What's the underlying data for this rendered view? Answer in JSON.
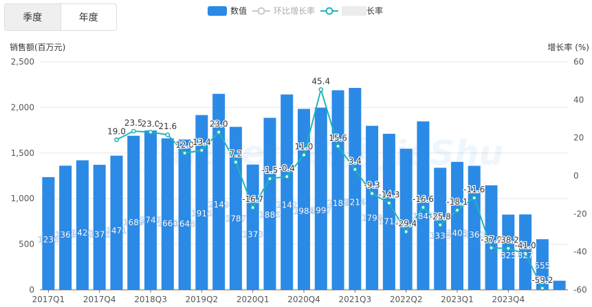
{
  "tabs": [
    {
      "label": "季度",
      "active": true
    },
    {
      "label": "年度",
      "active": false
    }
  ],
  "legend": [
    {
      "label": "数值",
      "type": "bar",
      "color": "#2b8ae6"
    },
    {
      "label": "环比增长率",
      "type": "line",
      "color": "#c8c8c8"
    },
    {
      "label": "长率",
      "type": "line",
      "color": "#1eb5b8"
    }
  ],
  "left_axis_title": "销售额(百万元)",
  "right_axis_title": "增长率  (%)",
  "watermark": "Jiuzhen 数据 JieShu",
  "colors": {
    "bar": "#2b8ae6",
    "line": "#1eb5b8",
    "grid": "#e6e6e6",
    "text": "#333333"
  },
  "chart_data": {
    "type": "bar",
    "categories": [
      "2017Q1",
      "2017Q2",
      "2017Q3",
      "2017Q4",
      "2018Q1",
      "2018Q2",
      "2018Q3",
      "2018Q4",
      "2019Q1",
      "2019Q2",
      "2019Q3",
      "2019Q4",
      "2020Q1",
      "2020Q2",
      "2020Q3",
      "2020Q4",
      "2021Q1",
      "2021Q2",
      "2021Q3",
      "2021Q4",
      "2022Q1",
      "2022Q2",
      "2022Q3",
      "2022Q4",
      "2023Q1",
      "2023Q2",
      "2023Q3",
      "2023Q4",
      "2024Q1",
      "2024Q2",
      "2024Q3"
    ],
    "x_tick_labels": [
      "2017Q1",
      "2017Q4",
      "2018Q3",
      "2019Q2",
      "2020Q1",
      "2020Q4",
      "2021Q3",
      "2022Q2",
      "2023Q1",
      "2023Q4"
    ],
    "series": [
      {
        "name": "数值",
        "axis": "left",
        "values": [
          1236,
          1361,
          1420,
          1371,
          1471,
          1689,
          1747,
          1661,
          1648,
          1916,
          2149,
          1787,
          1373,
          1886,
          2142,
          1984,
          1997,
          2188,
          2214,
          1798,
          1711,
          1547,
          1847,
          1338,
          1403,
          1360,
          1146,
          825,
          827,
          555,
          100
        ]
      },
      {
        "name": "长率",
        "axis": "right",
        "values": [
          null,
          null,
          null,
          null,
          19.0,
          23.5,
          23.0,
          21.6,
          12.0,
          13.4,
          23.0,
          7.2,
          -16.7,
          -1.5,
          -0.4,
          11.0,
          45.4,
          15.6,
          3.4,
          -9.3,
          -14.3,
          -29.4,
          -16.6,
          -25.8,
          -18.1,
          -11.6,
          -37.9,
          -38.2,
          -41.0,
          -59.2,
          null
        ]
      }
    ],
    "bar_labels": [
      "1236",
      "1361",
      "1420",
      "1371",
      "1471",
      "1689",
      "1747",
      "1661",
      "1648",
      "1916",
      "2149",
      "1787",
      "1373",
      "1886",
      "2142",
      "1984",
      "1997",
      "2188",
      "2214",
      "1798",
      "1711",
      "",
      "1847",
      "1338",
      "1403",
      "1360",
      "",
      "825",
      "827",
      "555",
      ""
    ],
    "line_labels": [
      "",
      "",
      "",
      "",
      "19.0",
      "23.5",
      "23.0",
      "21.6",
      "12.0",
      "13.4",
      "23.0",
      "7.2",
      "-16.7",
      "-1.5",
      "-0.4",
      "11.0",
      "45.4",
      "15.6",
      "3.4",
      "-9.3",
      "-14.3",
      "-29.4",
      "-16.6",
      "-25.8",
      "-18.1",
      "-11.6",
      "-37.9",
      "-38.2",
      "-41.0",
      "-59.2",
      ""
    ],
    "left_axis": {
      "min": 0,
      "max": 2500,
      "ticks": [
        "0",
        "500",
        "1,000",
        "1,500",
        "2,000",
        "2,500"
      ]
    },
    "right_axis": {
      "min": -60,
      "max": 60,
      "ticks": [
        "-60",
        "-40",
        "-20",
        "0",
        "20",
        "40",
        "60"
      ]
    },
    "grid": true,
    "legend_position": "top-center"
  }
}
